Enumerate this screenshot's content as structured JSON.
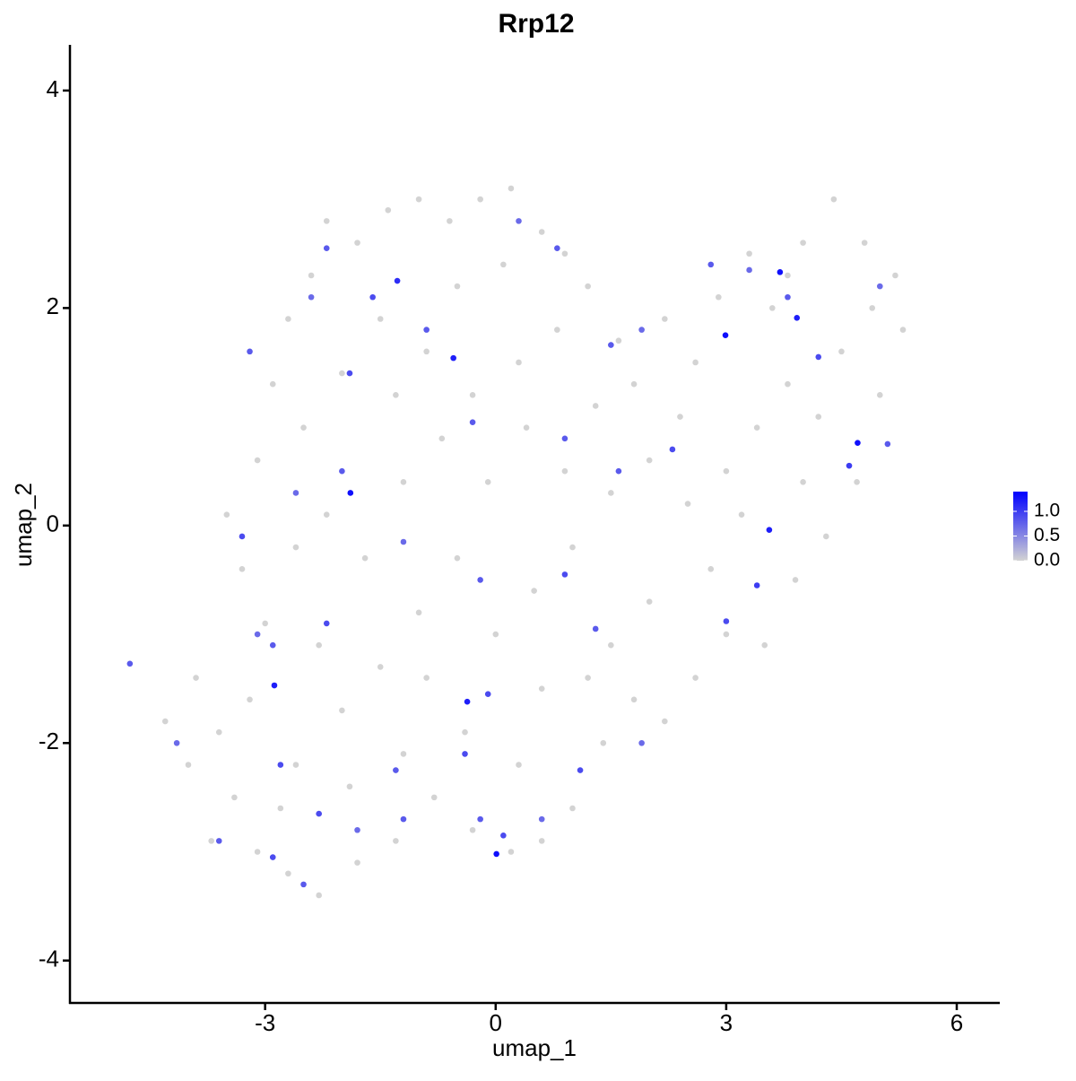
{
  "chart_data": {
    "type": "scatter",
    "title": "Rrp12",
    "x_label": "umap_1",
    "y_label": "umap_2",
    "xlim": [
      -5.54,
      6.56
    ],
    "ylim": [
      -4.39,
      4.42
    ],
    "xticks": [
      -3,
      0,
      3,
      6
    ],
    "yticks": [
      -4,
      -2,
      0,
      2,
      4
    ],
    "x": [
      -4.3,
      -4.0,
      -3.7,
      -3.4,
      -3.2,
      -3.0,
      -3.3,
      -3.5,
      -3.1,
      -2.9,
      -2.7,
      -2.4,
      -2.2,
      -1.8,
      -1.4,
      -1.0,
      -0.6,
      -0.2,
      0.2,
      0.6,
      0.9,
      1.2,
      0.8,
      0.3,
      -0.3,
      -0.9,
      -1.5,
      -2.0,
      -2.5,
      -2.2,
      -1.7,
      -1.2,
      -0.7,
      -0.1,
      0.4,
      0.9,
      1.3,
      1.8,
      2.2,
      2.6,
      2.9,
      3.3,
      3.6,
      4.0,
      4.4,
      4.8,
      5.2,
      5.3,
      5.0,
      4.7,
      4.3,
      3.9,
      3.5,
      3.0,
      2.6,
      2.2,
      1.8,
      1.4,
      1.0,
      0.6,
      0.2,
      -0.3,
      -0.8,
      -1.3,
      -1.8,
      -2.3,
      -2.7,
      -3.1,
      -2.6,
      -2.0,
      -1.5,
      -1.0,
      -0.5,
      0.0,
      0.5,
      1.0,
      1.5,
      2.0,
      2.5,
      3.0,
      3.4,
      3.8,
      4.2,
      4.5,
      2.0,
      1.5,
      0.6,
      -0.4,
      -1.2,
      -2.3,
      -3.6,
      -2.8,
      -1.9,
      -0.9,
      0.3,
      1.2,
      2.8,
      3.2,
      4.0,
      4.9,
      3.8,
      2.4,
      1.6,
      0.1,
      -0.5,
      -1.3,
      -2.6,
      -3.9,
      -4.76,
      -4.15,
      -3.6,
      -2.9,
      -2.5,
      -2.3,
      -1.8,
      -1.2,
      -0.2,
      0.1,
      0.6,
      1.1,
      1.9,
      1.3,
      0.9,
      -0.2,
      -1.2,
      -2.2,
      -2.9,
      -3.3,
      -2.6,
      -3.2,
      -2.4,
      -2.2,
      -1.9,
      -0.9,
      -0.3,
      0.3,
      0.8,
      -1.6,
      1.5,
      1.9,
      2.3,
      2.8,
      3.3,
      3.8,
      4.2,
      4.6,
      5.1,
      5.0,
      3.4,
      3.0,
      0.9,
      1.6,
      -0.1,
      -0.4,
      -1.3,
      -2.8,
      -3.1,
      -2.0,
      -1.89,
      -0.55,
      -1.28,
      2.99,
      3.7,
      3.92,
      4.71,
      3.56,
      -2.88,
      -0.37,
      0.01
    ],
    "y": [
      -1.8,
      -2.2,
      -2.9,
      -2.5,
      -1.6,
      -0.9,
      -0.4,
      0.1,
      0.6,
      1.3,
      1.9,
      2.3,
      2.8,
      2.6,
      2.9,
      3.0,
      2.8,
      3.0,
      3.1,
      2.7,
      2.5,
      2.2,
      1.8,
      1.5,
      1.2,
      1.6,
      1.9,
      1.4,
      0.9,
      0.1,
      -0.3,
      0.4,
      0.8,
      0.4,
      0.9,
      0.5,
      1.1,
      1.3,
      1.9,
      1.5,
      2.1,
      2.5,
      2.0,
      2.6,
      3.0,
      2.6,
      2.3,
      1.8,
      1.2,
      0.4,
      -0.1,
      -0.5,
      -1.1,
      -1.0,
      -1.4,
      -1.8,
      -1.6,
      -2.0,
      -2.6,
      -2.9,
      -3.0,
      -2.8,
      -2.5,
      -2.9,
      -3.1,
      -3.4,
      -3.2,
      -3.0,
      -2.2,
      -1.7,
      -1.3,
      -0.8,
      -0.3,
      -1.0,
      -0.6,
      -0.2,
      0.3,
      0.6,
      0.2,
      0.5,
      0.9,
      1.3,
      1.0,
      1.6,
      -0.7,
      -1.1,
      -1.5,
      -1.9,
      -2.1,
      -1.1,
      -1.9,
      -2.6,
      -2.4,
      -1.4,
      -2.2,
      -1.4,
      -0.4,
      0.1,
      0.4,
      2.0,
      2.3,
      1.0,
      1.7,
      2.4,
      2.2,
      1.2,
      -0.2,
      -1.4,
      -1.27,
      -2.0,
      -2.9,
      -3.05,
      -3.3,
      -2.65,
      -2.8,
      -2.7,
      -2.7,
      -2.85,
      -2.7,
      -2.25,
      -2.0,
      -0.95,
      -0.45,
      -0.5,
      -0.15,
      -0.9,
      -1.1,
      -0.1,
      0.3,
      1.6,
      2.1,
      2.55,
      1.4,
      1.8,
      0.95,
      2.8,
      2.55,
      2.1,
      1.66,
      1.8,
      0.7,
      2.4,
      2.35,
      2.1,
      1.55,
      0.55,
      0.75,
      2.2,
      -0.55,
      -0.88,
      0.8,
      0.5,
      -1.55,
      -2.1,
      -2.25,
      -2.2,
      -1.0,
      0.5,
      0.3,
      1.54,
      2.25,
      1.75,
      2.33,
      1.91,
      0.76,
      -0.04,
      -1.47,
      -1.62,
      -3.02
    ],
    "values": [
      0,
      0,
      0,
      0,
      0,
      0,
      0,
      0,
      0,
      0,
      0,
      0,
      0,
      0,
      0,
      0,
      0,
      0,
      0,
      0,
      0,
      0,
      0,
      0,
      0,
      0,
      0,
      0,
      0,
      0,
      0,
      0,
      0,
      0,
      0,
      0,
      0,
      0,
      0,
      0,
      0,
      0,
      0,
      0,
      0,
      0,
      0,
      0,
      0,
      0,
      0,
      0,
      0,
      0,
      0,
      0,
      0,
      0,
      0,
      0,
      0,
      0,
      0,
      0,
      0,
      0,
      0,
      0,
      0,
      0,
      0,
      0,
      0,
      0,
      0,
      0,
      0,
      0,
      0,
      0,
      0,
      0,
      0,
      0,
      0,
      0,
      0,
      0,
      0,
      0,
      0,
      0,
      0,
      0,
      0,
      0,
      0,
      0,
      0,
      0,
      0,
      0,
      0,
      0,
      0,
      0,
      0,
      0,
      0.8,
      0.7,
      0.8,
      0.9,
      0.8,
      0.9,
      0.7,
      0.8,
      0.8,
      0.9,
      0.7,
      0.9,
      0.7,
      0.8,
      0.9,
      0.8,
      0.7,
      0.9,
      0.8,
      0.9,
      0.7,
      0.8,
      0.7,
      0.8,
      0.9,
      0.8,
      0.8,
      0.7,
      0.8,
      0.9,
      0.8,
      0.7,
      0.9,
      0.8,
      0.7,
      0.8,
      0.9,
      1.0,
      0.8,
      0.7,
      1.0,
      0.9,
      0.8,
      0.8,
      0.9,
      0.9,
      0.8,
      0.9,
      0.7,
      0.8,
      1.3,
      1.2,
      1.1,
      1.3,
      1.3,
      1.2,
      1.3,
      1.2,
      1.2,
      1.2,
      1.3
    ],
    "colorbar": {
      "lim": [
        0,
        1.4
      ],
      "low_color": "#d3d3d3",
      "high_color": "#0000ff",
      "ticks": [
        {
          "value": 0,
          "label": "0.0"
        },
        0.5,
        {
          "value": 1,
          "label": "1.0"
        }
      ]
    }
  }
}
